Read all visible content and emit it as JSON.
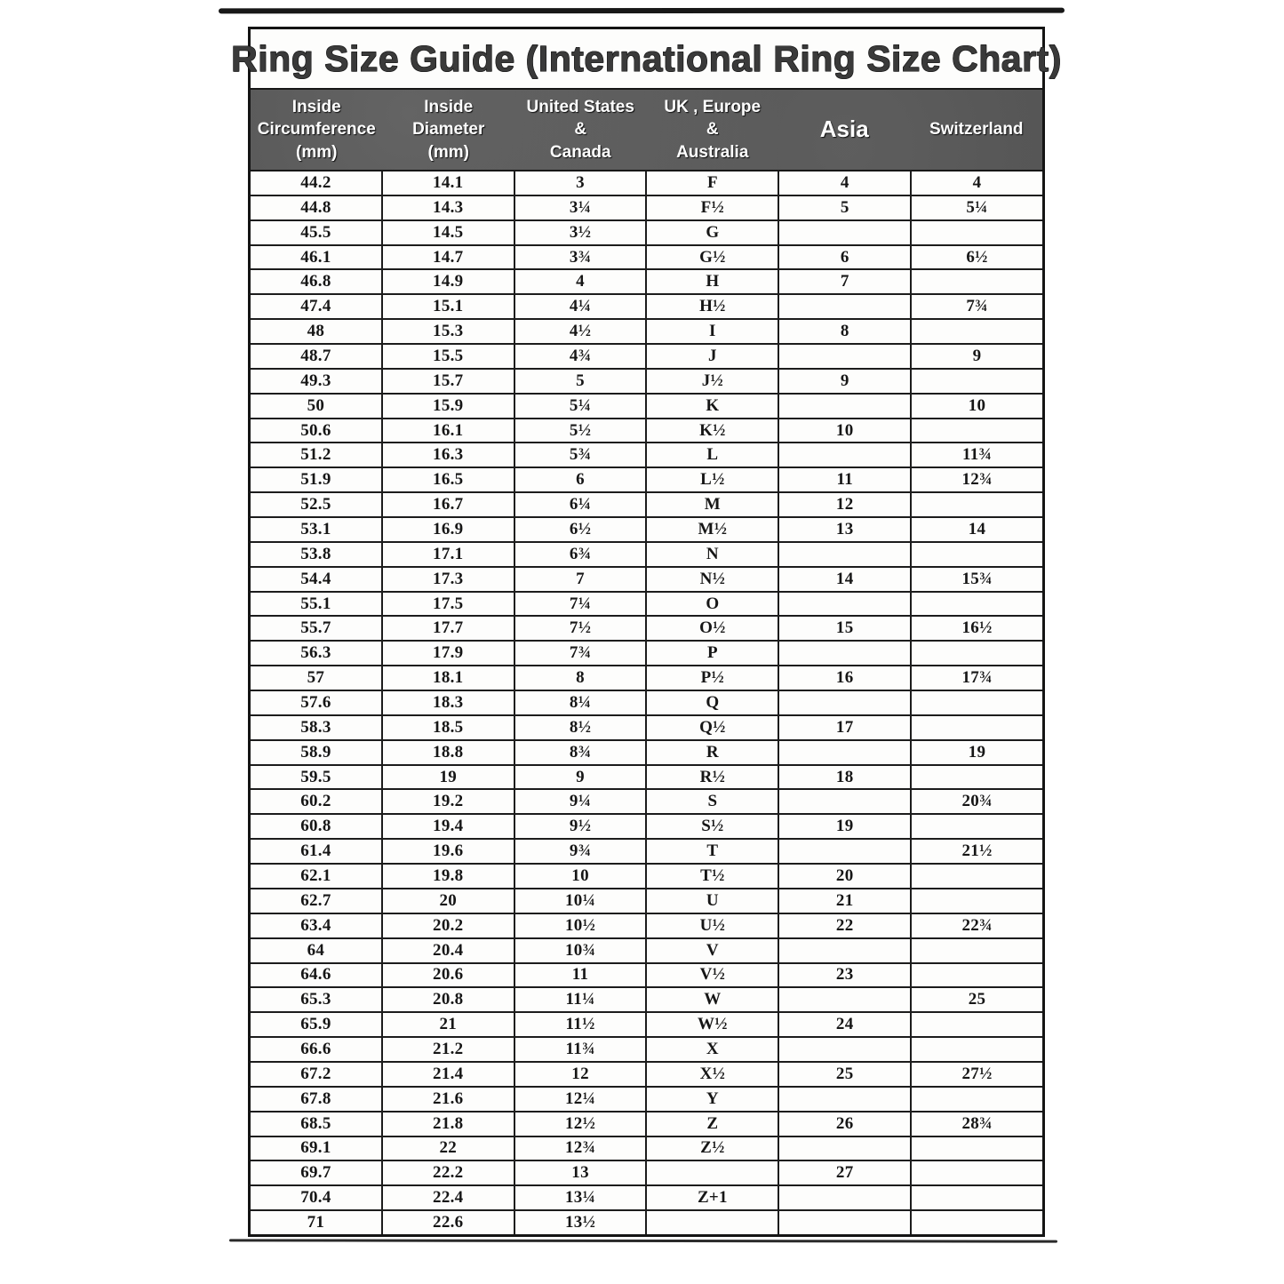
{
  "title": "Ring Size Guide (International Ring Size Chart)",
  "table": {
    "columns": [
      "Inside\nCircumference\n(mm)",
      "Inside\nDiameter\n(mm)",
      "United States\n&\nCanada",
      "UK , Europe\n&\nAustralia",
      "Asia",
      "Switzerland"
    ],
    "rows": [
      [
        "44.2",
        "14.1",
        "3",
        "F",
        "4",
        "4"
      ],
      [
        "44.8",
        "14.3",
        "3¼",
        "F½",
        "5",
        "5¼"
      ],
      [
        "45.5",
        "14.5",
        "3½",
        "G",
        "",
        ""
      ],
      [
        "46.1",
        "14.7",
        "3¾",
        "G½",
        "6",
        "6½"
      ],
      [
        "46.8",
        "14.9",
        "4",
        "H",
        "7",
        ""
      ],
      [
        "47.4",
        "15.1",
        "4¼",
        "H½",
        "",
        "7¾"
      ],
      [
        "48",
        "15.3",
        "4½",
        "I",
        "8",
        ""
      ],
      [
        "48.7",
        "15.5",
        "4¾",
        "J",
        "",
        "9"
      ],
      [
        "49.3",
        "15.7",
        "5",
        "J½",
        "9",
        ""
      ],
      [
        "50",
        "15.9",
        "5¼",
        "K",
        "",
        "10"
      ],
      [
        "50.6",
        "16.1",
        "5½",
        "K½",
        "10",
        ""
      ],
      [
        "51.2",
        "16.3",
        "5¾",
        "L",
        "",
        "11¾"
      ],
      [
        "51.9",
        "16.5",
        "6",
        "L½",
        "11",
        "12¾"
      ],
      [
        "52.5",
        "16.7",
        "6¼",
        "M",
        "12",
        ""
      ],
      [
        "53.1",
        "16.9",
        "6½",
        "M½",
        "13",
        "14"
      ],
      [
        "53.8",
        "17.1",
        "6¾",
        "N",
        "",
        ""
      ],
      [
        "54.4",
        "17.3",
        "7",
        "N½",
        "14",
        "15¾"
      ],
      [
        "55.1",
        "17.5",
        "7¼",
        "O",
        "",
        ""
      ],
      [
        "55.7",
        "17.7",
        "7½",
        "O½",
        "15",
        "16½"
      ],
      [
        "56.3",
        "17.9",
        "7¾",
        "P",
        "",
        ""
      ],
      [
        "57",
        "18.1",
        "8",
        "P½",
        "16",
        "17¾"
      ],
      [
        "57.6",
        "18.3",
        "8¼",
        "Q",
        "",
        ""
      ],
      [
        "58.3",
        "18.5",
        "8½",
        "Q½",
        "17",
        ""
      ],
      [
        "58.9",
        "18.8",
        "8¾",
        "R",
        "",
        "19"
      ],
      [
        "59.5",
        "19",
        "9",
        "R½",
        "18",
        ""
      ],
      [
        "60.2",
        "19.2",
        "9¼",
        "S",
        "",
        "20¾"
      ],
      [
        "60.8",
        "19.4",
        "9½",
        "S½",
        "19",
        ""
      ],
      [
        "61.4",
        "19.6",
        "9¾",
        "T",
        "",
        "21½"
      ],
      [
        "62.1",
        "19.8",
        "10",
        "T½",
        "20",
        ""
      ],
      [
        "62.7",
        "20",
        "10¼",
        "U",
        "21",
        ""
      ],
      [
        "63.4",
        "20.2",
        "10½",
        "U½",
        "22",
        "22¾"
      ],
      [
        "64",
        "20.4",
        "10¾",
        "V",
        "",
        ""
      ],
      [
        "64.6",
        "20.6",
        "11",
        "V½",
        "23",
        ""
      ],
      [
        "65.3",
        "20.8",
        "11¼",
        "W",
        "",
        "25"
      ],
      [
        "65.9",
        "21",
        "11½",
        "W½",
        "24",
        ""
      ],
      [
        "66.6",
        "21.2",
        "11¾",
        "X",
        "",
        ""
      ],
      [
        "67.2",
        "21.4",
        "12",
        "X½",
        "25",
        "27½"
      ],
      [
        "67.8",
        "21.6",
        "12¼",
        "Y",
        "",
        ""
      ],
      [
        "68.5",
        "21.8",
        "12½",
        "Z",
        "26",
        "28¾"
      ],
      [
        "69.1",
        "22",
        "12¾",
        "Z½",
        "",
        ""
      ],
      [
        "69.7",
        "22.2",
        "13",
        "",
        "27",
        ""
      ],
      [
        "70.4",
        "22.4",
        "13¼",
        "Z+1",
        "",
        ""
      ],
      [
        "71",
        "22.6",
        "13½",
        "",
        "",
        ""
      ]
    ]
  }
}
